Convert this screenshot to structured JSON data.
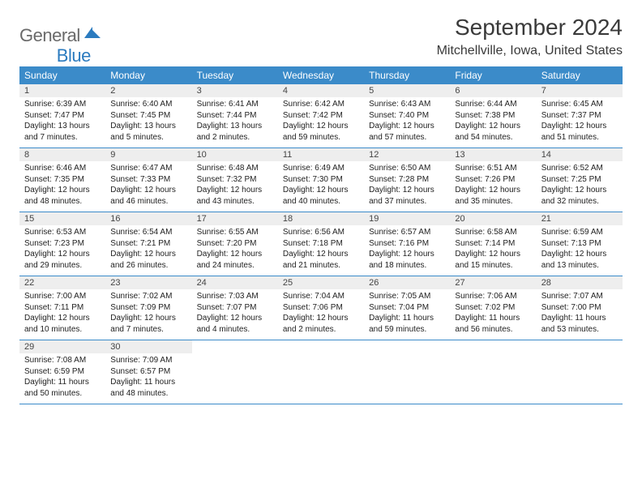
{
  "logo": {
    "part1": "General",
    "part2": "Blue"
  },
  "title": "September 2024",
  "location": "Mitchellville, Iowa, United States",
  "colors": {
    "header_bg": "#3b8bc9",
    "daynum_bg": "#eeeeee",
    "border": "#3b8bc9",
    "text": "#222222",
    "logo_gray": "#6a6a6a",
    "logo_blue": "#2b7bbf"
  },
  "dayNames": [
    "Sunday",
    "Monday",
    "Tuesday",
    "Wednesday",
    "Thursday",
    "Friday",
    "Saturday"
  ],
  "days": [
    {
      "n": "1",
      "sr": "6:39 AM",
      "ss": "7:47 PM",
      "dl": "13 hours and 7 minutes."
    },
    {
      "n": "2",
      "sr": "6:40 AM",
      "ss": "7:45 PM",
      "dl": "13 hours and 5 minutes."
    },
    {
      "n": "3",
      "sr": "6:41 AM",
      "ss": "7:44 PM",
      "dl": "13 hours and 2 minutes."
    },
    {
      "n": "4",
      "sr": "6:42 AM",
      "ss": "7:42 PM",
      "dl": "12 hours and 59 minutes."
    },
    {
      "n": "5",
      "sr": "6:43 AM",
      "ss": "7:40 PM",
      "dl": "12 hours and 57 minutes."
    },
    {
      "n": "6",
      "sr": "6:44 AM",
      "ss": "7:38 PM",
      "dl": "12 hours and 54 minutes."
    },
    {
      "n": "7",
      "sr": "6:45 AM",
      "ss": "7:37 PM",
      "dl": "12 hours and 51 minutes."
    },
    {
      "n": "8",
      "sr": "6:46 AM",
      "ss": "7:35 PM",
      "dl": "12 hours and 48 minutes."
    },
    {
      "n": "9",
      "sr": "6:47 AM",
      "ss": "7:33 PM",
      "dl": "12 hours and 46 minutes."
    },
    {
      "n": "10",
      "sr": "6:48 AM",
      "ss": "7:32 PM",
      "dl": "12 hours and 43 minutes."
    },
    {
      "n": "11",
      "sr": "6:49 AM",
      "ss": "7:30 PM",
      "dl": "12 hours and 40 minutes."
    },
    {
      "n": "12",
      "sr": "6:50 AM",
      "ss": "7:28 PM",
      "dl": "12 hours and 37 minutes."
    },
    {
      "n": "13",
      "sr": "6:51 AM",
      "ss": "7:26 PM",
      "dl": "12 hours and 35 minutes."
    },
    {
      "n": "14",
      "sr": "6:52 AM",
      "ss": "7:25 PM",
      "dl": "12 hours and 32 minutes."
    },
    {
      "n": "15",
      "sr": "6:53 AM",
      "ss": "7:23 PM",
      "dl": "12 hours and 29 minutes."
    },
    {
      "n": "16",
      "sr": "6:54 AM",
      "ss": "7:21 PM",
      "dl": "12 hours and 26 minutes."
    },
    {
      "n": "17",
      "sr": "6:55 AM",
      "ss": "7:20 PM",
      "dl": "12 hours and 24 minutes."
    },
    {
      "n": "18",
      "sr": "6:56 AM",
      "ss": "7:18 PM",
      "dl": "12 hours and 21 minutes."
    },
    {
      "n": "19",
      "sr": "6:57 AM",
      "ss": "7:16 PM",
      "dl": "12 hours and 18 minutes."
    },
    {
      "n": "20",
      "sr": "6:58 AM",
      "ss": "7:14 PM",
      "dl": "12 hours and 15 minutes."
    },
    {
      "n": "21",
      "sr": "6:59 AM",
      "ss": "7:13 PM",
      "dl": "12 hours and 13 minutes."
    },
    {
      "n": "22",
      "sr": "7:00 AM",
      "ss": "7:11 PM",
      "dl": "12 hours and 10 minutes."
    },
    {
      "n": "23",
      "sr": "7:02 AM",
      "ss": "7:09 PM",
      "dl": "12 hours and 7 minutes."
    },
    {
      "n": "24",
      "sr": "7:03 AM",
      "ss": "7:07 PM",
      "dl": "12 hours and 4 minutes."
    },
    {
      "n": "25",
      "sr": "7:04 AM",
      "ss": "7:06 PM",
      "dl": "12 hours and 2 minutes."
    },
    {
      "n": "26",
      "sr": "7:05 AM",
      "ss": "7:04 PM",
      "dl": "11 hours and 59 minutes."
    },
    {
      "n": "27",
      "sr": "7:06 AM",
      "ss": "7:02 PM",
      "dl": "11 hours and 56 minutes."
    },
    {
      "n": "28",
      "sr": "7:07 AM",
      "ss": "7:00 PM",
      "dl": "11 hours and 53 minutes."
    },
    {
      "n": "29",
      "sr": "7:08 AM",
      "ss": "6:59 PM",
      "dl": "11 hours and 50 minutes."
    },
    {
      "n": "30",
      "sr": "7:09 AM",
      "ss": "6:57 PM",
      "dl": "11 hours and 48 minutes."
    }
  ],
  "labels": {
    "sunrise": "Sunrise:",
    "sunset": "Sunset:",
    "daylight": "Daylight:"
  }
}
